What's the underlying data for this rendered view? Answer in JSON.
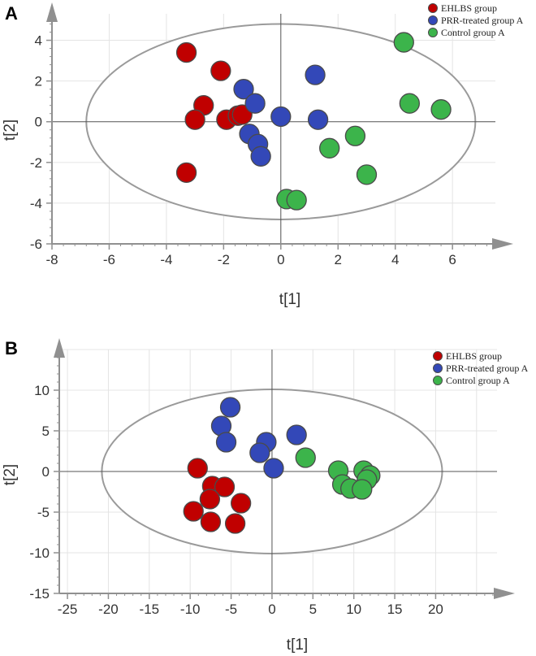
{
  "chart_data": [
    {
      "type": "scatter",
      "panel": "A",
      "title": "",
      "xlabel": "t[1]",
      "ylabel": "t[2]",
      "xlim": [
        -8,
        7.5
      ],
      "ylim": [
        -6,
        5.3
      ],
      "xticks": [
        "-8",
        "-6",
        "-4",
        "-2",
        "0",
        "2",
        "4",
        "6"
      ],
      "yticks": [
        "-6",
        "-4",
        "-2",
        "0",
        "2",
        "4"
      ],
      "grid": true,
      "legend_position": "top-right",
      "ellipse": {
        "cx": 0,
        "cy": 0,
        "rx": 6.8,
        "ry": 4.8
      },
      "series": [
        {
          "name": "EHLBS group",
          "color": "#c00000",
          "points": [
            [
              -3.3,
              3.4
            ],
            [
              -2.1,
              2.5
            ],
            [
              -2.7,
              0.8
            ],
            [
              -3.0,
              0.1
            ],
            [
              -1.9,
              0.1
            ],
            [
              -1.5,
              0.3
            ],
            [
              -1.35,
              0.35
            ],
            [
              -3.3,
              -2.5
            ]
          ]
        },
        {
          "name": "PRR-treated group A",
          "color": "#3348b8",
          "points": [
            [
              -1.3,
              1.6
            ],
            [
              -0.9,
              0.9
            ],
            [
              1.2,
              2.3
            ],
            [
              0.0,
              0.25
            ],
            [
              1.3,
              0.1
            ],
            [
              -1.1,
              -0.6
            ],
            [
              -0.8,
              -1.1
            ],
            [
              -0.7,
              -1.7
            ]
          ]
        },
        {
          "name": "Control group A",
          "color": "#3cb44b",
          "points": [
            [
              4.3,
              3.9
            ],
            [
              4.5,
              0.9
            ],
            [
              5.6,
              0.6
            ],
            [
              2.6,
              -0.7
            ],
            [
              1.7,
              -1.3
            ],
            [
              3.0,
              -2.6
            ],
            [
              0.2,
              -3.8
            ],
            [
              0.55,
              -3.85
            ]
          ]
        }
      ]
    },
    {
      "type": "scatter",
      "panel": "B",
      "title": "",
      "xlabel": "t[1]",
      "ylabel": "t[2]",
      "xlim": [
        -26,
        27.5
      ],
      "ylim": [
        -15,
        15
      ],
      "xticks": [
        "-25",
        "-20",
        "-15",
        "-10",
        "-5",
        "0",
        "5",
        "10",
        "15",
        "20"
      ],
      "yticks": [
        "-15",
        "-10",
        "-5",
        "0",
        "5",
        "10"
      ],
      "grid": true,
      "legend_position": "top-right",
      "ellipse": {
        "cx": 0,
        "cy": 0,
        "rx": 20.8,
        "ry": 10.1
      },
      "series": [
        {
          "name": "EHLBS group",
          "color": "#c00000",
          "points": [
            [
              -9.1,
              0.4
            ],
            [
              -7.3,
              -1.8
            ],
            [
              -5.8,
              -1.9
            ],
            [
              -7.6,
              -3.4
            ],
            [
              -9.6,
              -4.9
            ],
            [
              -7.5,
              -6.2
            ],
            [
              -3.8,
              -3.9
            ],
            [
              -4.5,
              -6.4
            ]
          ]
        },
        {
          "name": "PRR-treated group A",
          "color": "#3348b8",
          "points": [
            [
              -5.1,
              7.9
            ],
            [
              -6.2,
              5.6
            ],
            [
              -5.6,
              3.6
            ],
            [
              -0.7,
              3.6
            ],
            [
              -1.5,
              2.3
            ],
            [
              3.0,
              4.5
            ],
            [
              0.2,
              0.4
            ]
          ]
        },
        {
          "name": "Control group A",
          "color": "#3cb44b",
          "points": [
            [
              4.1,
              1.7
            ],
            [
              8.1,
              0.1
            ],
            [
              8.6,
              -1.6
            ],
            [
              9.6,
              -2.1
            ],
            [
              11.2,
              0.1
            ],
            [
              12.0,
              -0.5
            ],
            [
              11.6,
              -1.0
            ],
            [
              11.0,
              -2.2
            ]
          ]
        }
      ]
    }
  ],
  "legend_labels": [
    "EHLBS group",
    "PRR-treated group A",
    "Control group A"
  ],
  "panel_labels": [
    "A",
    "B"
  ]
}
